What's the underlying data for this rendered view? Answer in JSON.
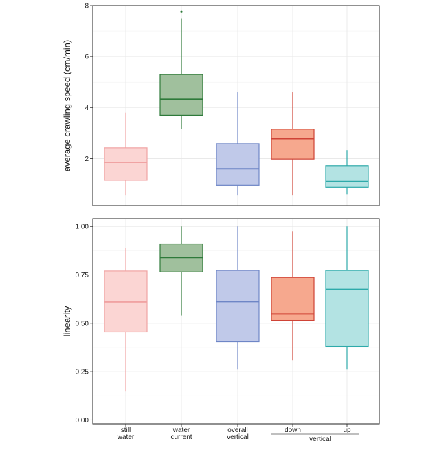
{
  "chart_data": [
    {
      "type": "box",
      "ylabel": "average crawling speed (cm/min)",
      "ylim": [
        0.15,
        8
      ],
      "yticks": [
        2,
        4,
        6,
        8
      ],
      "grid": true,
      "categories": [
        "still water",
        "water current",
        "overall vertical",
        "down",
        "up"
      ],
      "boxes": [
        {
          "category": "still water",
          "min": 0.55,
          "q1": 1.15,
          "median": 1.85,
          "q3": 2.42,
          "max": 3.8,
          "outliers": [],
          "fill": "#fbd5d3",
          "stroke": "#f0a3a3"
        },
        {
          "category": "water current",
          "min": 3.15,
          "q1": 3.7,
          "median": 4.32,
          "q3": 5.3,
          "max": 7.5,
          "outliers": [
            7.75
          ],
          "fill": "#a0c09d",
          "stroke": "#2e7a3a"
        },
        {
          "category": "overall vertical",
          "min": 0.55,
          "q1": 0.95,
          "median": 1.6,
          "q3": 2.58,
          "max": 4.6,
          "outliers": [],
          "fill": "#c0c9e9",
          "stroke": "#6e86c6"
        },
        {
          "category": "down",
          "min": 0.55,
          "q1": 1.98,
          "median": 2.78,
          "q3": 3.15,
          "max": 4.6,
          "outliers": [],
          "fill": "#f6a88e",
          "stroke": "#cf4336"
        },
        {
          "category": "up",
          "min": 0.6,
          "q1": 0.87,
          "median": 1.1,
          "q3": 1.72,
          "max": 2.33,
          "outliers": [],
          "fill": "#b3e3e3",
          "stroke": "#2eaaaa"
        }
      ]
    },
    {
      "type": "box",
      "ylabel": "linearity",
      "ylim": [
        -0.02,
        1.04
      ],
      "yticks": [
        "0.00",
        "0.25",
        "0.50",
        "0.75",
        "1.00"
      ],
      "grid": true,
      "categories": [
        "still water",
        "water current",
        "overall vertical",
        "down",
        "up"
      ],
      "boxes": [
        {
          "category": "still water",
          "min": 0.15,
          "q1": 0.455,
          "median": 0.61,
          "q3": 0.77,
          "max": 0.89,
          "outliers": [],
          "fill": "#fbd5d3",
          "stroke": "#f0a3a3"
        },
        {
          "category": "water current",
          "min": 0.54,
          "q1": 0.765,
          "median": 0.84,
          "q3": 0.91,
          "max": 1.0,
          "outliers": [],
          "fill": "#a0c09d",
          "stroke": "#2e7a3a"
        },
        {
          "category": "overall vertical",
          "min": 0.26,
          "q1": 0.405,
          "median": 0.612,
          "q3": 0.773,
          "max": 1.0,
          "outliers": [],
          "fill": "#c0c9e9",
          "stroke": "#6e86c6"
        },
        {
          "category": "down",
          "min": 0.31,
          "q1": 0.515,
          "median": 0.548,
          "q3": 0.737,
          "max": 0.975,
          "outliers": [],
          "fill": "#f6a88e",
          "stroke": "#cf4336"
        },
        {
          "category": "up",
          "min": 0.26,
          "q1": 0.38,
          "median": 0.675,
          "q3": 0.773,
          "max": 1.0,
          "outliers": [],
          "fill": "#b3e3e3",
          "stroke": "#2eaaaa"
        }
      ]
    }
  ],
  "x_axis": {
    "labels": [
      {
        "line1": "still",
        "line2": "water"
      },
      {
        "line1": "water",
        "line2": "current"
      },
      {
        "line1": "overall",
        "line2": "vertical"
      },
      {
        "line1": "down",
        "line2": ""
      },
      {
        "line1": "up",
        "line2": ""
      }
    ],
    "group_label": "vertical"
  }
}
